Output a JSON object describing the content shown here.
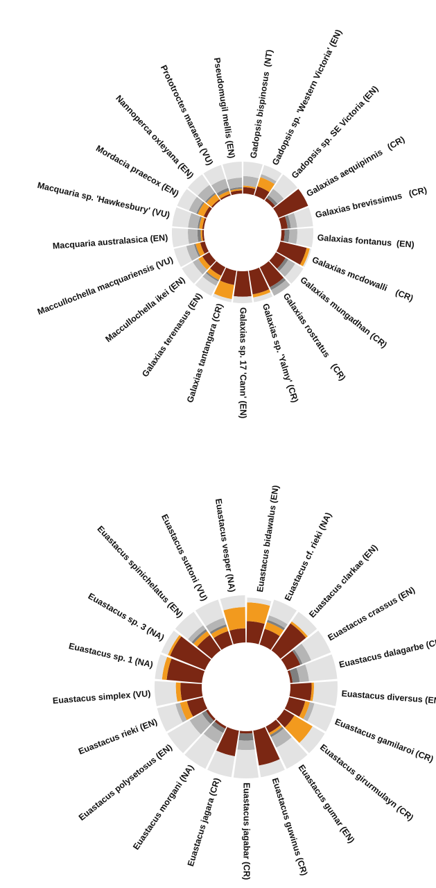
{
  "chart_data": [
    {
      "type": "radial",
      "categories": [
        "Gadopsis bispinosus  (NT)",
        "Gadopsis sp. 'Western Victoria' (EN)",
        "Gadopsis sp. SE Victoria (EN)",
        "Galaxias aequipinnis   (CR)",
        "Galaxias brevissimus   (CR)",
        "Galaxias fontanus  (EN)",
        "Galaxias mcdowalli    (CR)",
        "Galaxias mungadhan (CR)",
        "Galaxias rostratus    (CR)",
        "Galaxias sp. 'Yalmy' (CR)",
        "Galaxias sp. 17 'Cann' (EN)",
        "Galaxias tantangara (CR)",
        "Galaxias terenasus (EN)",
        "Maccullochella ikei (EN)",
        "Maccullochella macquariensis (VU)",
        "Macquaria australasica (EN)",
        "Macquaria sp. 'Hawkesbury' (VU)",
        "Mordacia praecox (EN)",
        "Nannoperca oxleyana (EN)",
        "Prototroctes maraena (VU)",
        "Pseudomugil mellis (EN)"
      ],
      "series": [
        {
          "color": "#7b2713",
          "values": [
            0.2,
            0.3,
            0.1,
            1.0,
            0.2,
            0.1,
            0.85,
            0.35,
            0.7,
            0.75,
            0.8,
            0.45,
            0.3,
            0.25,
            0.15,
            0.05,
            0.05,
            0.1,
            0.05,
            0.05,
            0.1
          ]
        },
        {
          "color": "#f29a1e",
          "values": [
            0.05,
            0.3,
            0.0,
            0.0,
            0.0,
            0.0,
            0.1,
            0.0,
            0.0,
            0.1,
            0.0,
            0.45,
            0.15,
            0.15,
            0.15,
            0.05,
            0.1,
            0.2,
            0.2,
            0.1,
            0.05
          ]
        },
        {
          "color": "#7f7f7f",
          "values": [
            0.0,
            0.0,
            0.1,
            0.0,
            0.1,
            0.15,
            0.0,
            0.1,
            0.1,
            0.0,
            0.0,
            0.0,
            0.05,
            0.0,
            0.05,
            0.1,
            0.05,
            0.05,
            0.05,
            0.1,
            0.05
          ]
        },
        {
          "color": "#b5b5b5",
          "values": [
            0.3,
            0.1,
            0.25,
            0.0,
            0.2,
            0.25,
            0.0,
            0.25,
            0.2,
            0.0,
            0.0,
            0.0,
            0.15,
            0.2,
            0.25,
            0.3,
            0.3,
            0.25,
            0.3,
            0.3,
            0.3
          ]
        },
        {
          "color": "#e3e3e3",
          "values": [
            0.45,
            0.3,
            0.55,
            0.0,
            0.5,
            0.5,
            0.05,
            0.3,
            0.0,
            0.15,
            0.2,
            0.1,
            0.35,
            0.4,
            0.4,
            0.5,
            0.5,
            0.4,
            0.4,
            0.45,
            0.5
          ]
        }
      ]
    },
    {
      "type": "radial",
      "categories": [
        "Euastacus bidawalus (EN)",
        "Euastacus cf. rieki (NA)",
        "Euastacus clarkae (EN)",
        "Euastacus crassus (EN)",
        "Euastacus dalagarbe (CR)",
        "Euastacus diversus (EN)",
        "Euastacus gamilaroi (CR)",
        "Euastacus girurmulayn (CR)",
        "Euastacus gumar (EN)",
        "Euastacus guwinus (CR)",
        "Euastacus jagabar (CR)",
        "Euastacus jagara (CR)",
        "Euastacus morgani (NA)",
        "Euastacus polysetosus (EN)",
        "Euastacus rieki (EN)",
        "Euastacus simplex (VU)",
        "Euastacus sp. 1 (NA)",
        "Euastacus sp. 3 (NA)",
        "Euastacus spinichelatus (EN)",
        "Euastacus suttoni (VU)",
        "Euastacus vesper (NA)"
      ],
      "series": [
        {
          "color": "#7b2713",
          "values": [
            0.45,
            0.35,
            0.7,
            0.3,
            0.05,
            0.45,
            0.35,
            0.25,
            0.15,
            0.75,
            0.05,
            0.55,
            0.05,
            0.05,
            0.35,
            0.45,
            0.75,
            0.8,
            0.4,
            0.3,
            0.3
          ]
        },
        {
          "color": "#f29a1e",
          "values": [
            0.4,
            0.15,
            0.05,
            0.0,
            0.0,
            0.05,
            0.1,
            0.45,
            0.05,
            0.0,
            0.0,
            0.0,
            0.0,
            0.0,
            0.15,
            0.1,
            0.1,
            0.05,
            0.1,
            0.1,
            0.45
          ]
        },
        {
          "color": "#7f7f7f",
          "values": [
            0.0,
            0.05,
            0.0,
            0.05,
            0.15,
            0.0,
            0.0,
            0.0,
            0.05,
            0.0,
            0.15,
            0.0,
            0.1,
            0.1,
            0.0,
            0.0,
            0.0,
            0.0,
            0.05,
            0.05,
            0.0
          ]
        },
        {
          "color": "#b5b5b5",
          "values": [
            0.0,
            0.1,
            0.0,
            0.2,
            0.2,
            0.0,
            0.1,
            0.0,
            0.25,
            0.0,
            0.2,
            0.0,
            0.25,
            0.3,
            0.1,
            0.0,
            0.0,
            0.0,
            0.1,
            0.15,
            0.0
          ]
        },
        {
          "color": "#e3e3e3",
          "values": [
            0.1,
            0.35,
            0.25,
            0.45,
            0.6,
            0.5,
            0.45,
            0.3,
            0.5,
            0.25,
            0.6,
            0.45,
            0.6,
            0.55,
            0.4,
            0.45,
            0.15,
            0.15,
            0.35,
            0.4,
            0.25
          ]
        }
      ]
    }
  ]
}
